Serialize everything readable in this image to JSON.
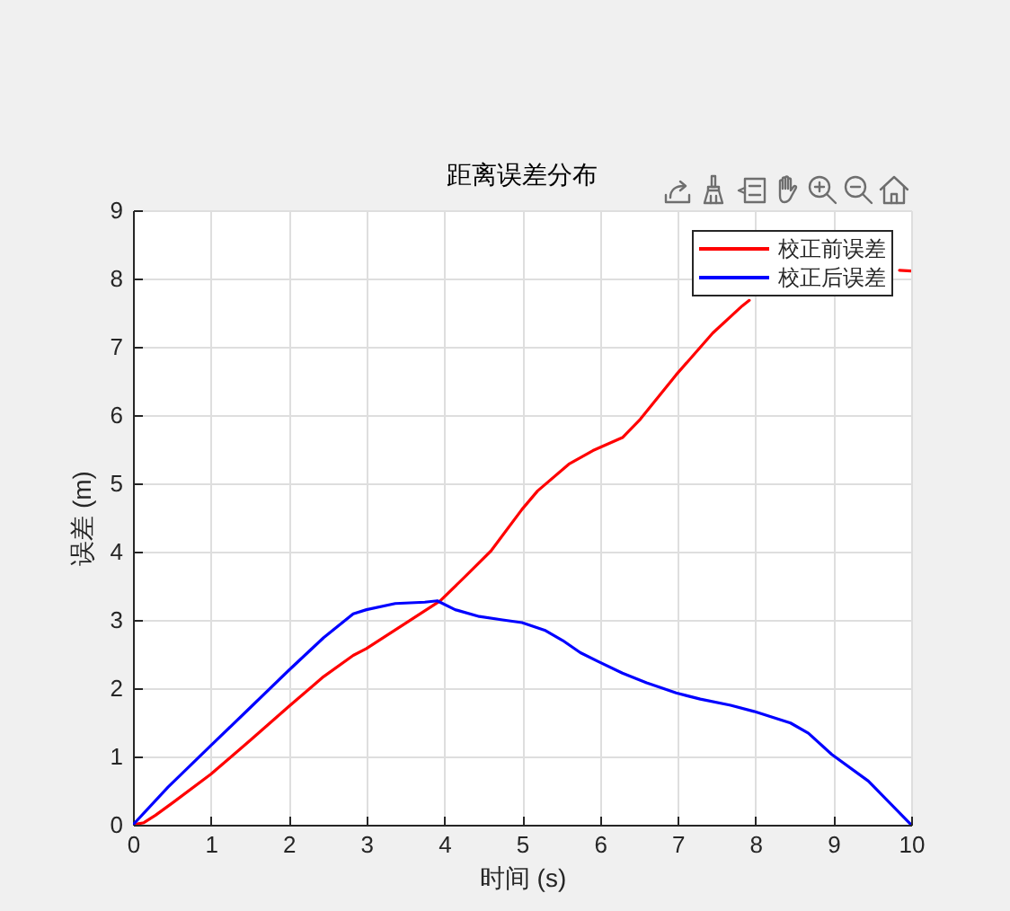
{
  "chart_data": {
    "type": "line",
    "title": "距离误差分布",
    "xlabel": "时间 (s)",
    "ylabel": "误差 (m)",
    "series": [
      {
        "name": "校正前误差",
        "color": "#ff0000",
        "x": [
          0,
          0.14,
          0.29,
          0.52,
          1,
          1.52,
          2,
          2.45,
          2.83,
          3,
          3.5,
          3.95,
          4.29,
          4.6,
          5,
          5.2,
          5.6,
          5.91,
          6.29,
          6.52,
          6.98,
          7.45,
          7.83,
          7.92,
          8.9,
          9.85,
          10
        ],
        "values": [
          0,
          0.03,
          0.14,
          0.33,
          0.74,
          1.25,
          1.73,
          2.17,
          2.48,
          2.58,
          2.95,
          3.28,
          3.66,
          4.01,
          4.62,
          4.89,
          5.28,
          5.48,
          5.67,
          5.94,
          6.59,
          7.2,
          7.6,
          7.68,
          null,
          8.12,
          8.11
        ]
      },
      {
        "name": "校正后误差",
        "color": "#0000ff",
        "x": [
          0,
          0.45,
          1,
          1.52,
          2,
          2.45,
          2.83,
          3,
          3.37,
          3.75,
          3.91,
          4.14,
          4.45,
          4.75,
          5,
          5.29,
          5.52,
          5.75,
          5.98,
          6.29,
          6.6,
          6.98,
          7.29,
          7.68,
          7.98,
          8.45,
          8.68,
          8.98,
          9.45,
          10
        ],
        "values": [
          0,
          0.55,
          1.16,
          1.73,
          2.26,
          2.74,
          3.09,
          3.15,
          3.24,
          3.26,
          3.28,
          3.15,
          3.05,
          3.0,
          2.96,
          2.85,
          2.7,
          2.52,
          2.39,
          2.22,
          2.08,
          1.93,
          1.84,
          1.75,
          1.66,
          1.49,
          1.34,
          1.03,
          0.64,
          0
        ]
      }
    ],
    "xlim": [
      0,
      10
    ],
    "ylim": [
      0,
      9
    ],
    "xticks": [
      0,
      1,
      2,
      3,
      4,
      5,
      6,
      7,
      8,
      9,
      10
    ],
    "yticks": [
      0,
      1,
      2,
      3,
      4,
      5,
      6,
      7,
      8,
      9
    ],
    "grid": true,
    "legend": "top right"
  }
}
